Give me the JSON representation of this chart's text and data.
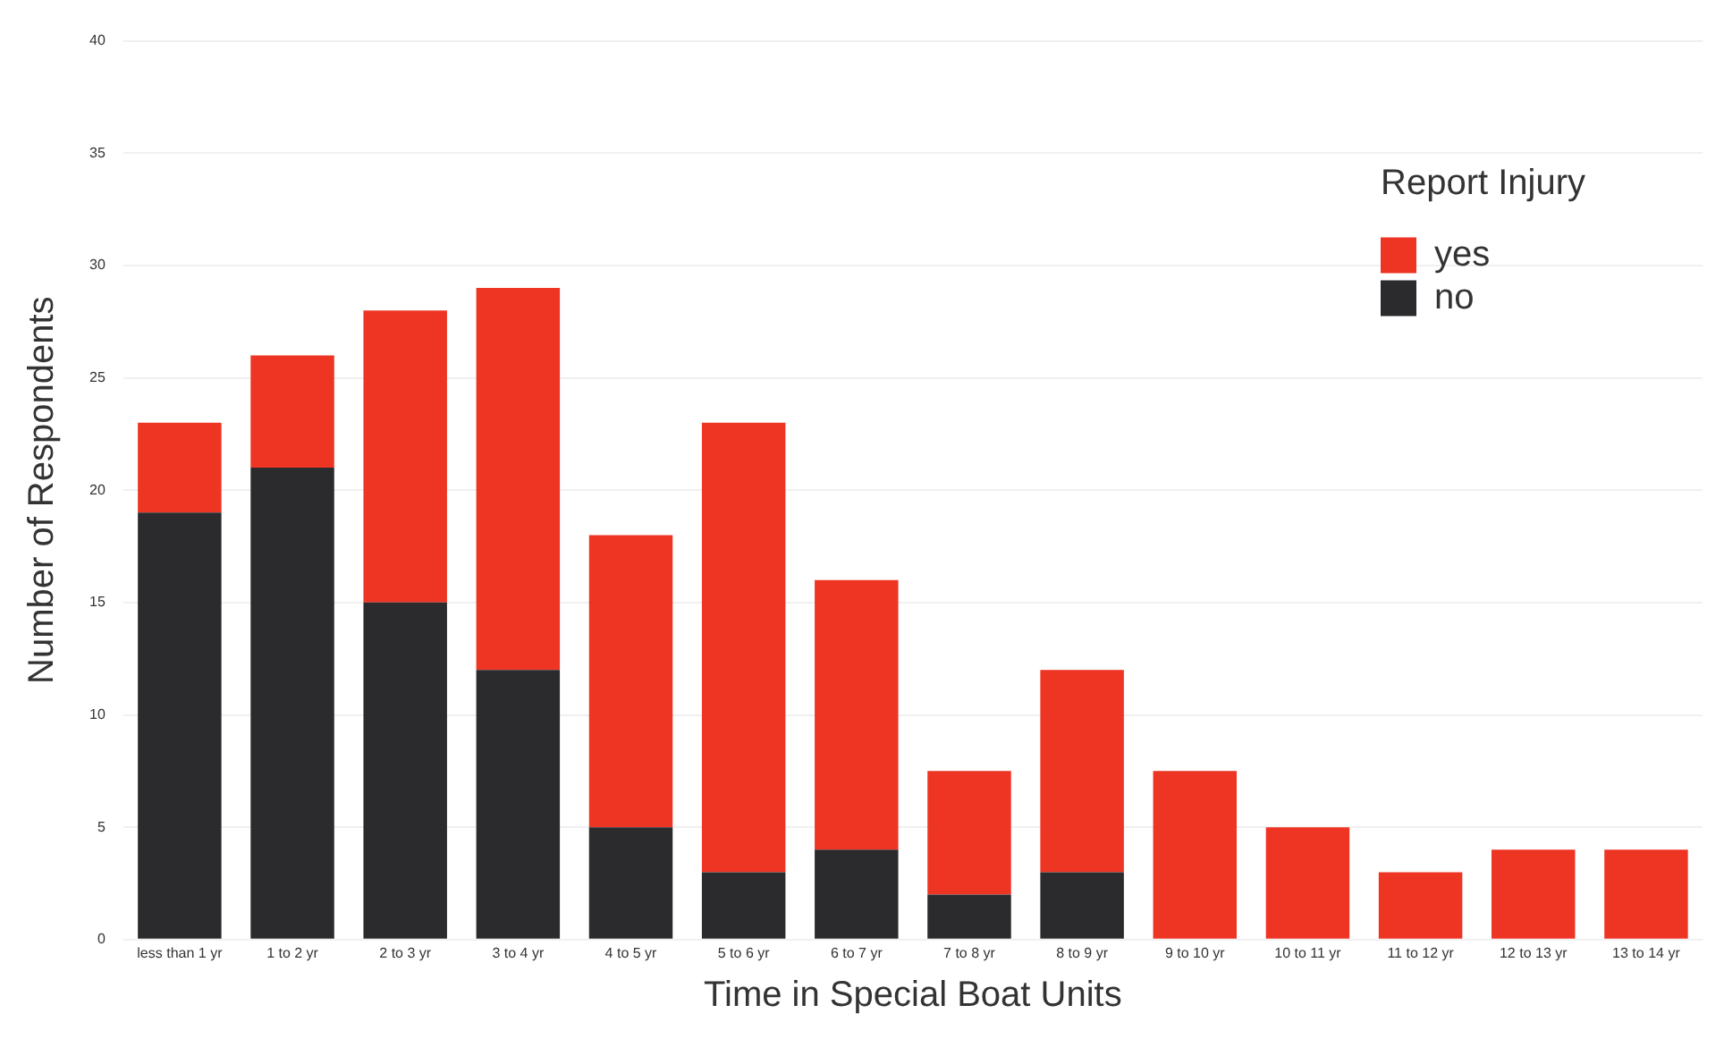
{
  "chart_data": {
    "type": "bar",
    "stacked": true,
    "xlabel": "Time in Special Boat Units",
    "ylabel": "Number of Respondents",
    "legend_title": "Report Injury",
    "legend": "top right",
    "grid": "y",
    "categories": [
      "less than 1 yr",
      "1 to 2 yr",
      "2 to 3 yr",
      "3 to 4 yr",
      "4 to 5 yr",
      "5 to 6 yr",
      "6 to 7 yr",
      "7 to 8 yr",
      "8 to 9 yr",
      "9 to 10 yr",
      "10 to 11 yr",
      "11 to 12 yr",
      "12 to 13 yr",
      "13 to 14 yr"
    ],
    "series": [
      {
        "name": "no",
        "color": "#2b2b2e",
        "values": [
          19,
          21,
          15,
          12,
          5,
          3,
          4,
          2,
          3,
          0,
          0,
          0,
          0,
          0
        ]
      },
      {
        "name": "yes",
        "color": "#ee3524",
        "values": [
          4,
          5,
          13,
          17,
          13,
          20,
          12,
          5.5,
          9,
          7.5,
          5,
          3,
          4,
          4
        ]
      }
    ],
    "ylim": [
      0,
      40
    ],
    "yticks": [
      0,
      5,
      10,
      15,
      20,
      25,
      30,
      35,
      40
    ]
  }
}
